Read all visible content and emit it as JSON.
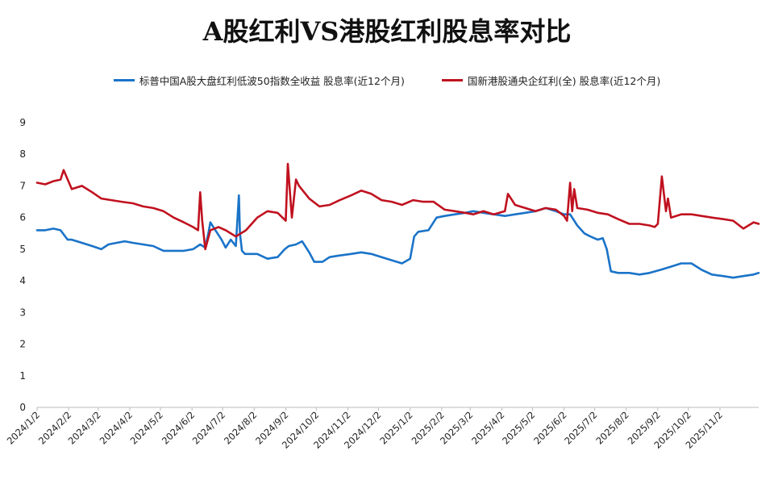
{
  "title": "A股红利VS港股红利股息率对比",
  "chart_data": {
    "type": "line",
    "title": "A股红利VS港股红利股息率对比",
    "ylim": [
      0,
      9
    ],
    "yticks": [
      0,
      1,
      2,
      3,
      4,
      5,
      6,
      7,
      8,
      9
    ],
    "xlim": [
      "2024-01-02",
      "2025-12-10"
    ],
    "x_tick_labels": [
      "2024/1/2",
      "2024/2/2",
      "2024/3/2",
      "2024/4/2",
      "2024/5/2",
      "2024/6/2",
      "2024/7/2",
      "2024/8/2",
      "2024/9/2",
      "2024/10/2",
      "2024/11/2",
      "2024/12/2",
      "2025/1/2",
      "2025/2/2",
      "2025/3/2",
      "2025/4/2",
      "2025/5/2",
      "2025/6/2",
      "2025/7/2",
      "2025/8/2",
      "2025/9/2",
      "2025/10/2",
      "2025/11/2"
    ],
    "x_tick_dates": [
      "2024-01-02",
      "2024-02-02",
      "2024-03-02",
      "2024-04-02",
      "2024-05-02",
      "2024-06-02",
      "2024-07-02",
      "2024-08-02",
      "2024-09-02",
      "2024-10-02",
      "2024-11-02",
      "2024-12-02",
      "2025-01-02",
      "2025-02-02",
      "2025-03-02",
      "2025-04-02",
      "2025-05-02",
      "2025-06-02",
      "2025-07-02",
      "2025-08-02",
      "2025-09-02",
      "2025-10-02",
      "2025-11-02"
    ],
    "grid": false,
    "legend_position": "top",
    "series": [
      {
        "name": "标普中国A股大盘红利低波50指数全收益 股息率(近12个月)",
        "color": "#1a73c8",
        "x": [
          "2024-01-02",
          "2024-01-10",
          "2024-01-18",
          "2024-01-25",
          "2024-02-01",
          "2024-02-05",
          "2024-02-15",
          "2024-02-25",
          "2024-03-05",
          "2024-03-12",
          "2024-03-20",
          "2024-03-28",
          "2024-04-05",
          "2024-04-15",
          "2024-04-25",
          "2024-05-05",
          "2024-05-15",
          "2024-05-25",
          "2024-06-03",
          "2024-06-10",
          "2024-06-15",
          "2024-06-18",
          "2024-06-20",
          "2024-06-25",
          "2024-07-01",
          "2024-07-05",
          "2024-07-10",
          "2024-07-15",
          "2024-07-18",
          "2024-07-19",
          "2024-07-21",
          "2024-07-24",
          "2024-07-28",
          "2024-08-05",
          "2024-08-15",
          "2024-08-25",
          "2024-09-01",
          "2024-09-05",
          "2024-09-12",
          "2024-09-18",
          "2024-09-25",
          "2024-09-30",
          "2024-10-08",
          "2024-10-15",
          "2024-10-25",
          "2024-11-05",
          "2024-11-15",
          "2024-11-25",
          "2024-12-05",
          "2024-12-15",
          "2024-12-25",
          "2025-01-02",
          "2025-01-06",
          "2025-01-10",
          "2025-01-20",
          "2025-01-28",
          "2025-02-05",
          "2025-02-15",
          "2025-02-25",
          "2025-03-05",
          "2025-03-15",
          "2025-03-25",
          "2025-04-05",
          "2025-04-15",
          "2025-04-25",
          "2025-05-05",
          "2025-05-15",
          "2025-05-25",
          "2025-06-02",
          "2025-06-08",
          "2025-06-15",
          "2025-06-22",
          "2025-06-28",
          "2025-07-05",
          "2025-07-10",
          "2025-07-14",
          "2025-07-18",
          "2025-07-25",
          "2025-08-05",
          "2025-08-15",
          "2025-08-25",
          "2025-09-05",
          "2025-09-15",
          "2025-09-25",
          "2025-10-05",
          "2025-10-15",
          "2025-10-25",
          "2025-11-05",
          "2025-11-15",
          "2025-11-25",
          "2025-12-05",
          "2025-12-10"
        ],
        "y": [
          5.6,
          5.6,
          5.65,
          5.6,
          5.3,
          5.3,
          5.2,
          5.1,
          5.0,
          5.15,
          5.2,
          5.25,
          5.2,
          5.15,
          5.1,
          4.95,
          4.95,
          4.95,
          5.0,
          5.15,
          5.05,
          5.5,
          5.85,
          5.6,
          5.3,
          5.05,
          5.3,
          5.1,
          6.7,
          5.5,
          4.95,
          4.85,
          4.85,
          4.85,
          4.7,
          4.75,
          5.0,
          5.1,
          5.15,
          5.25,
          4.9,
          4.6,
          4.6,
          4.75,
          4.8,
          4.85,
          4.9,
          4.85,
          4.75,
          4.65,
          4.55,
          4.7,
          5.4,
          5.55,
          5.6,
          6.0,
          6.05,
          6.1,
          6.15,
          6.2,
          6.15,
          6.1,
          6.05,
          6.1,
          6.15,
          6.2,
          6.3,
          6.2,
          6.1,
          6.1,
          5.75,
          5.5,
          5.4,
          5.3,
          5.35,
          5.0,
          4.3,
          4.25,
          4.25,
          4.2,
          4.25,
          4.35,
          4.45,
          4.55,
          4.55,
          4.35,
          4.2,
          4.15,
          4.1,
          4.15,
          4.2,
          4.25
        ]
      },
      {
        "name": "国新港股通央企红利(全) 股息率(近12个月)",
        "color": "#c0111f",
        "x": [
          "2024-01-02",
          "2024-01-10",
          "2024-01-18",
          "2024-01-25",
          "2024-01-28",
          "2024-02-05",
          "2024-02-15",
          "2024-02-25",
          "2024-03-05",
          "2024-03-15",
          "2024-03-25",
          "2024-04-05",
          "2024-04-15",
          "2024-04-25",
          "2024-05-05",
          "2024-05-15",
          "2024-05-25",
          "2024-06-03",
          "2024-06-08",
          "2024-06-10",
          "2024-06-12",
          "2024-06-15",
          "2024-06-20",
          "2024-06-28",
          "2024-07-05",
          "2024-07-15",
          "2024-07-25",
          "2024-08-05",
          "2024-08-15",
          "2024-08-25",
          "2024-09-02",
          "2024-09-04",
          "2024-09-08",
          "2024-09-12",
          "2024-09-15",
          "2024-09-25",
          "2024-10-05",
          "2024-10-15",
          "2024-10-25",
          "2024-11-05",
          "2024-11-15",
          "2024-11-25",
          "2024-12-05",
          "2024-12-15",
          "2024-12-25",
          "2025-01-05",
          "2025-01-15",
          "2025-01-25",
          "2025-02-05",
          "2025-02-15",
          "2025-02-25",
          "2025-03-05",
          "2025-03-15",
          "2025-03-25",
          "2025-04-05",
          "2025-04-08",
          "2025-04-15",
          "2025-04-25",
          "2025-05-05",
          "2025-05-15",
          "2025-05-25",
          "2025-06-02",
          "2025-06-05",
          "2025-06-08",
          "2025-06-10",
          "2025-06-12",
          "2025-06-15",
          "2025-06-25",
          "2025-07-05",
          "2025-07-15",
          "2025-07-25",
          "2025-08-05",
          "2025-08-15",
          "2025-08-25",
          "2025-08-30",
          "2025-09-02",
          "2025-09-06",
          "2025-09-10",
          "2025-09-12",
          "2025-09-15",
          "2025-09-25",
          "2025-10-05",
          "2025-10-15",
          "2025-10-25",
          "2025-11-05",
          "2025-11-15",
          "2025-11-25",
          "2025-12-05",
          "2025-12-10"
        ],
        "y": [
          7.1,
          7.05,
          7.15,
          7.2,
          7.5,
          6.9,
          7.0,
          6.8,
          6.6,
          6.55,
          6.5,
          6.45,
          6.35,
          6.3,
          6.2,
          6.0,
          5.85,
          5.7,
          5.6,
          6.8,
          5.9,
          5.0,
          5.6,
          5.7,
          5.6,
          5.4,
          5.6,
          6.0,
          6.2,
          6.15,
          5.9,
          7.7,
          6.0,
          7.2,
          7.0,
          6.6,
          6.35,
          6.4,
          6.55,
          6.7,
          6.85,
          6.75,
          6.55,
          6.5,
          6.4,
          6.55,
          6.5,
          6.5,
          6.25,
          6.2,
          6.15,
          6.1,
          6.2,
          6.1,
          6.2,
          6.75,
          6.4,
          6.3,
          6.2,
          6.3,
          6.25,
          6.05,
          5.9,
          7.1,
          6.2,
          6.9,
          6.3,
          6.25,
          6.15,
          6.1,
          5.95,
          5.8,
          5.8,
          5.75,
          5.7,
          5.8,
          7.3,
          6.2,
          6.6,
          6.0,
          6.1,
          6.1,
          6.05,
          6.0,
          5.95,
          5.9,
          5.65,
          5.85,
          5.8
        ]
      }
    ]
  }
}
